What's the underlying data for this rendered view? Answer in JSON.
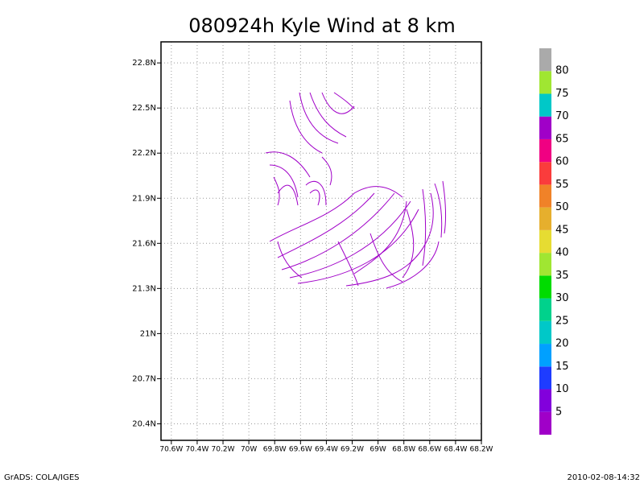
{
  "chart_data": {
    "type": "streamline",
    "title": "080924h Kyle Wind at 8 km",
    "xlim": [
      -70.68,
      -68.2
    ],
    "xticks": [
      {
        "value": -70.6,
        "label": "70.6W"
      },
      {
        "value": -70.4,
        "label": "70.4W"
      },
      {
        "value": -70.2,
        "label": "70.2W"
      },
      {
        "value": -70.0,
        "label": "70W"
      },
      {
        "value": -69.8,
        "label": "69.8W"
      },
      {
        "value": -69.6,
        "label": "69.6W"
      },
      {
        "value": -69.4,
        "label": "69.4W"
      },
      {
        "value": -69.2,
        "label": "69.2W"
      },
      {
        "value": -69.0,
        "label": "69W"
      },
      {
        "value": -68.8,
        "label": "68.8W"
      },
      {
        "value": -68.6,
        "label": "68.6W"
      },
      {
        "value": -68.4,
        "label": "68.4W"
      },
      {
        "value": -68.2,
        "label": "68.2W"
      }
    ],
    "ylim": [
      20.29,
      22.94
    ],
    "yticks": [
      {
        "value": 20.4,
        "label": "20.4N"
      },
      {
        "value": 20.7,
        "label": "20.7N"
      },
      {
        "value": 21.0,
        "label": "21N"
      },
      {
        "value": 21.3,
        "label": "21.3N"
      },
      {
        "value": 21.6,
        "label": "21.6N"
      },
      {
        "value": 21.9,
        "label": "21.9N"
      },
      {
        "value": 22.2,
        "label": "22.2N"
      },
      {
        "value": 22.5,
        "label": "22.5N"
      },
      {
        "value": 22.8,
        "label": "22.8N"
      }
    ],
    "grid": true,
    "line_color": "#a000c8",
    "colorbar": {
      "levels": [
        5,
        10,
        15,
        20,
        25,
        30,
        35,
        40,
        45,
        50,
        55,
        60,
        65,
        70,
        75,
        80
      ],
      "colors": [
        "#a000c8",
        "#8200dc",
        "#1e3cff",
        "#00a0ff",
        "#00c8c8",
        "#00d28c",
        "#00dc00",
        "#a0e632",
        "#e6dc32",
        "#e6af2d",
        "#f08228",
        "#fa3c3c",
        "#f00082",
        "#a000c8",
        "#00c8c8",
        "#a0e632",
        "#aaaaaa"
      ]
    },
    "footer_left": "GrADS: COLA/IGES",
    "footer_right": "2010-02-08-14:32"
  }
}
